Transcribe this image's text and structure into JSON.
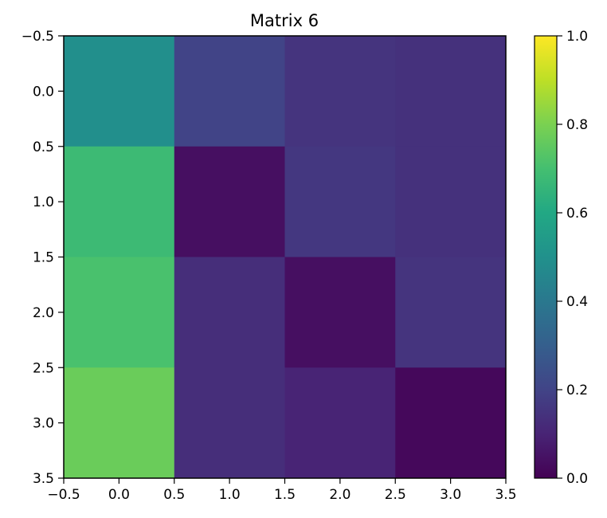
{
  "chart_data": {
    "type": "heatmap",
    "title": "Matrix 6",
    "xlabel": "",
    "ylabel": "",
    "x_ticks": [
      "−0.5",
      "0.0",
      "0.5",
      "1.0",
      "1.5",
      "2.0",
      "2.5",
      "3.0",
      "3.5"
    ],
    "y_ticks": [
      "−0.5",
      "0.0",
      "0.5",
      "1.0",
      "1.5",
      "2.0",
      "2.5",
      "3.0",
      "3.5"
    ],
    "xlim": [
      -0.5,
      3.5
    ],
    "ylim": [
      3.5,
      -0.5
    ],
    "values": [
      [
        0.49,
        0.2,
        0.15,
        0.14
      ],
      [
        0.68,
        0.04,
        0.16,
        0.14
      ],
      [
        0.71,
        0.13,
        0.04,
        0.15
      ],
      [
        0.77,
        0.13,
        0.1,
        0.02
      ]
    ],
    "colormap": "viridis",
    "colorbar": {
      "range": [
        0.0,
        1.0
      ],
      "ticks": [
        "0.0",
        "0.2",
        "0.4",
        "0.6",
        "0.8",
        "1.0"
      ]
    },
    "grid": false
  }
}
